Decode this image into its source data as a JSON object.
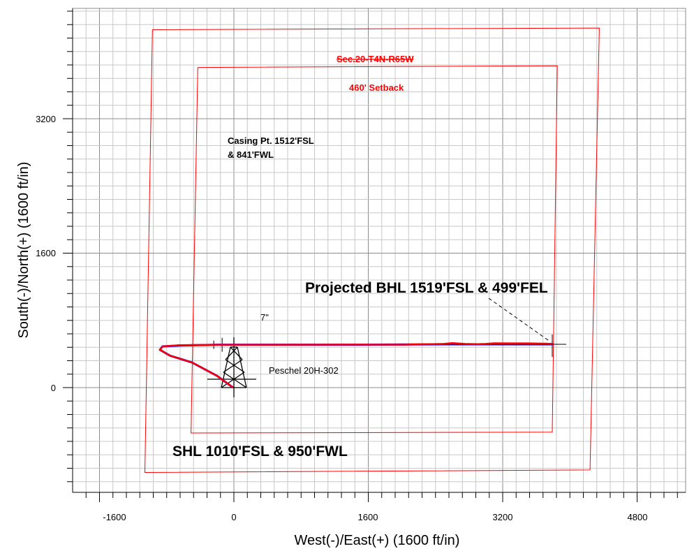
{
  "chart_data": {
    "type": "line",
    "title": "",
    "xlabel": "West(-)/East(+) (1600 ft/in)",
    "ylabel": "South(-)/North(+) (1600 ft/in)",
    "xlim": [
      -1900,
      5300
    ],
    "ylim": [
      -1250,
      4500
    ],
    "major_step": 1600,
    "minor_step": 160,
    "x_ticks": [
      -1600,
      0,
      1600,
      3200,
      4800
    ],
    "y_ticks": [
      0,
      1600,
      3200
    ],
    "x_tick_labels": [
      "-1600",
      "0",
      "1600",
      "3200",
      "4800"
    ],
    "y_tick_labels": [
      "0",
      "1600",
      "3200"
    ],
    "grid": true,
    "section_boundary": [
      [
        -970,
        4260
      ],
      [
        4350,
        4280
      ],
      [
        4240,
        -980
      ],
      [
        -1060,
        -1010
      ],
      [
        -970,
        4260
      ]
    ],
    "setback_boundary": [
      [
        -430,
        3810
      ],
      [
        3850,
        3830
      ],
      [
        3790,
        -530
      ],
      [
        -510,
        -540
      ],
      [
        -430,
        3810
      ]
    ],
    "well_path": {
      "planned": {
        "color": "#0000ff",
        "points": [
          [
            -10,
            0
          ],
          [
            -200,
            140
          ],
          [
            -500,
            300
          ],
          [
            -760,
            380
          ],
          [
            -880,
            450
          ],
          [
            -850,
            490
          ],
          [
            -650,
            500
          ],
          [
            -200,
            510
          ],
          [
            500,
            510
          ],
          [
            1500,
            510
          ],
          [
            2600,
            515
          ],
          [
            3200,
            515
          ],
          [
            3800,
            515
          ]
        ]
      },
      "actual": {
        "color": "#ff0000",
        "points": [
          [
            -10,
            0
          ],
          [
            -200,
            140
          ],
          [
            -500,
            300
          ],
          [
            -760,
            380
          ],
          [
            -880,
            450
          ],
          [
            -850,
            490
          ],
          [
            -650,
            505
          ],
          [
            -200,
            510
          ],
          [
            500,
            510
          ],
          [
            1500,
            512
          ],
          [
            2000,
            510
          ],
          [
            2500,
            520
          ],
          [
            2600,
            530
          ],
          [
            2750,
            520
          ],
          [
            2900,
            518
          ],
          [
            3000,
            520
          ],
          [
            3100,
            528
          ],
          [
            3300,
            527
          ],
          [
            3500,
            527
          ],
          [
            3700,
            524
          ],
          [
            3800,
            520
          ]
        ]
      }
    },
    "annotations": {
      "section": {
        "text": "Sec.20-T4N-R65W",
        "color": "#ff0000"
      },
      "setback": {
        "text": "460' Setback",
        "color": "#ff0000"
      },
      "casing_point_line1": {
        "text": "Casing Pt. 1512'FSL"
      },
      "casing_point_line2": {
        "text": "& 841'FWL"
      },
      "bhl": {
        "text": "Projected BHL 1519'FSL & 499'FEL"
      },
      "shl": {
        "text": "SHL 1010'FSL & 950'FWL"
      },
      "casing_size": {
        "text": "7\""
      },
      "well_name": {
        "text": "Peschel 20H-302"
      }
    }
  }
}
